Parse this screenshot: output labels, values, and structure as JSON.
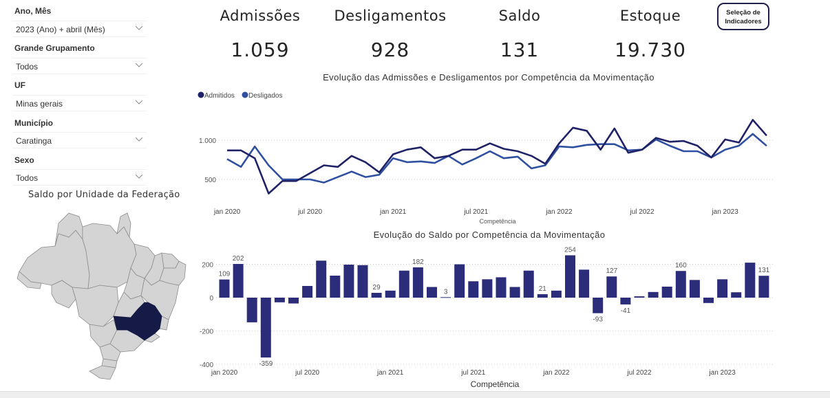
{
  "filters": [
    {
      "label": "Ano, Mês",
      "value": "2023 (Ano) + abril (Mês)"
    },
    {
      "label": "Grande Grupamento",
      "value": "Todos"
    },
    {
      "label": "UF",
      "value": "Minas gerais"
    },
    {
      "label": "Município",
      "value": "Caratinga"
    },
    {
      "label": "Sexo",
      "value": "Todos"
    }
  ],
  "kpis": [
    {
      "title": "Admissões",
      "value": "1.059"
    },
    {
      "title": "Desligamentos",
      "value": "928"
    },
    {
      "title": "Saldo",
      "value": "131"
    },
    {
      "title": "Estoque",
      "value": "19.730"
    }
  ],
  "selection_button": {
    "line1": "Seleção de",
    "line2": "Indicadores"
  },
  "map": {
    "title": "Saldo por Unidade da Federação",
    "highlighted_state": "Minas Gerais",
    "highlight_color": "#151a47",
    "base_color": "#d4d4d4"
  },
  "chart_data": [
    {
      "type": "line",
      "title": "Evolução das Admissões e Desligamentos por Competência da Movimentação",
      "xlabel": "Competência",
      "ylabel": "",
      "x_ticks": [
        "jan 2020",
        "jul 2020",
        "jan 2021",
        "jul 2021",
        "jan 2022",
        "jul 2022",
        "jan 2023"
      ],
      "x": [
        "jan 2020",
        "fev 2020",
        "mar 2020",
        "abr 2020",
        "mai 2020",
        "jun 2020",
        "jul 2020",
        "ago 2020",
        "set 2020",
        "out 2020",
        "nov 2020",
        "dez 2020",
        "jan 2021",
        "fev 2021",
        "mar 2021",
        "abr 2021",
        "mai 2021",
        "jun 2021",
        "jul 2021",
        "ago 2021",
        "set 2021",
        "out 2021",
        "nov 2021",
        "dez 2021",
        "jan 2022",
        "fev 2022",
        "mar 2022",
        "abr 2022",
        "mai 2022",
        "jun 2022",
        "jul 2022",
        "ago 2022",
        "set 2022",
        "out 2022",
        "nov 2022",
        "dez 2022",
        "jan 2023",
        "fev 2023",
        "mar 2023",
        "abr 2023"
      ],
      "y_ticks": [
        "500",
        "1.000"
      ],
      "y_tick_values": [
        500,
        1000
      ],
      "ylim": [
        250,
        1350
      ],
      "legend_position": "top-left",
      "grid": true,
      "series": [
        {
          "name": "Admitidos",
          "color": "#1f2266",
          "values": [
            870,
            870,
            770,
            320,
            480,
            480,
            580,
            680,
            660,
            800,
            720,
            590,
            820,
            880,
            910,
            770,
            800,
            880,
            880,
            960,
            890,
            860,
            800,
            700,
            960,
            1160,
            1120,
            880,
            1150,
            840,
            880,
            1030,
            980,
            990,
            930,
            780,
            1010,
            970,
            1260,
            1059
          ]
        },
        {
          "name": "Desligados",
          "color": "#2f4fa0",
          "values": [
            760,
            660,
            920,
            680,
            500,
            500,
            500,
            460,
            530,
            600,
            530,
            560,
            770,
            720,
            730,
            710,
            800,
            690,
            770,
            860,
            770,
            790,
            640,
            680,
            920,
            910,
            940,
            950,
            950,
            870,
            880,
            1010,
            930,
            860,
            860,
            780,
            880,
            930,
            1080,
            928
          ]
        }
      ]
    },
    {
      "type": "bar",
      "title": "Evolução do Saldo por Competência da Movimentação",
      "xlabel": "Competência",
      "ylabel": "",
      "x_ticks": [
        "jan 2020",
        "jul 2020",
        "jan 2021",
        "jul 2021",
        "jan 2022",
        "jul 2022",
        "jan 2023"
      ],
      "y_ticks": [
        "200",
        "0",
        "-200",
        "-400"
      ],
      "y_tick_values": [
        200,
        0,
        -200,
        -400
      ],
      "ylim": [
        -400,
        270
      ],
      "grid": true,
      "bar_color": "#2b2d7a",
      "categories": [
        "jan 2020",
        "fev 2020",
        "mar 2020",
        "abr 2020",
        "mai 2020",
        "jun 2020",
        "jul 2020",
        "ago 2020",
        "set 2020",
        "out 2020",
        "nov 2020",
        "dez 2020",
        "jan 2021",
        "fev 2021",
        "mar 2021",
        "abr 2021",
        "mai 2021",
        "jun 2021",
        "jul 2021",
        "ago 2021",
        "set 2021",
        "out 2021",
        "nov 2021",
        "dez 2021",
        "jan 2022",
        "fev 2022",
        "mar 2022",
        "abr 2022",
        "mai 2022",
        "jun 2022",
        "jul 2022",
        "ago 2022",
        "set 2022",
        "out 2022",
        "nov 2022",
        "dez 2022",
        "jan 2023",
        "fev 2023",
        "mar 2023",
        "abr 2023"
      ],
      "values": [
        109,
        202,
        -148,
        -359,
        -28,
        -35,
        70,
        222,
        132,
        198,
        195,
        29,
        42,
        162,
        182,
        64,
        3,
        200,
        98,
        110,
        122,
        64,
        162,
        21,
        42,
        254,
        168,
        -93,
        127,
        -41,
        8,
        34,
        66,
        160,
        106,
        -32,
        110,
        32,
        210,
        131
      ],
      "data_labels": {
        "0": "109",
        "1": "202",
        "3": "-359",
        "11": "29",
        "14": "182",
        "16": "3",
        "23": "21",
        "25": "254",
        "27": "-93",
        "28": "127",
        "29": "-41",
        "33": "160",
        "39": "131"
      }
    }
  ]
}
